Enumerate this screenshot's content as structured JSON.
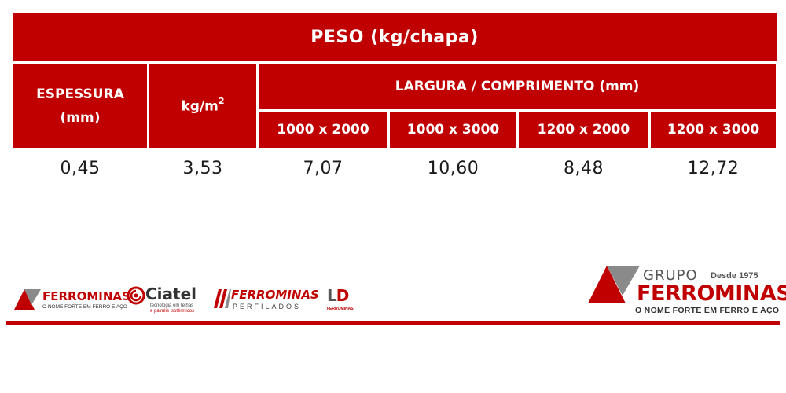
{
  "table": {
    "title": "PESO (kg/chapa)",
    "col_thickness": {
      "line1": "ESPESSURA",
      "line2": "(mm)"
    },
    "col_kgm2": {
      "base": "kg/m",
      "sup": "2"
    },
    "col_dimensions": "LARGURA / COMPRIMENTO (mm)",
    "dimensions": [
      "1000 x 2000",
      "1000 x 3000",
      "1200 x 2000",
      "1200 x 3000"
    ],
    "row": {
      "thickness": "0,45",
      "kgm2": "3,53",
      "weights": [
        "7,07",
        "10,60",
        "8,48",
        "12,72"
      ]
    }
  },
  "brands": {
    "ferrominas": {
      "name": "FERROMINAS",
      "tagline": "O NOME FORTE EM FERRO E AÇO",
      "icon": "ferrominas-triangle-icon"
    },
    "ciatel": {
      "name": "Ciatel",
      "tagline1": "tecnologia em telhas",
      "tagline2": "e painéis isotérmicos",
      "icon": "ciatel-swirl-icon"
    },
    "perfilados": {
      "name": "FERROMINAS",
      "tagline": "PERFILADOS",
      "icon": "perfilados-stripes-icon"
    },
    "ld": {
      "name_l": "L",
      "name_d": "D",
      "tagline": "FERROMINAS"
    }
  },
  "group_logo": {
    "grupo": "GRUPO",
    "since": "Desde 1975",
    "name": "FERROMINAS",
    "tagline": "O NOME FORTE EM FERRO E AÇO"
  },
  "colors": {
    "brand_red": "#c00000",
    "text": "#1a1a1a",
    "gray": "#8a8a8a"
  }
}
